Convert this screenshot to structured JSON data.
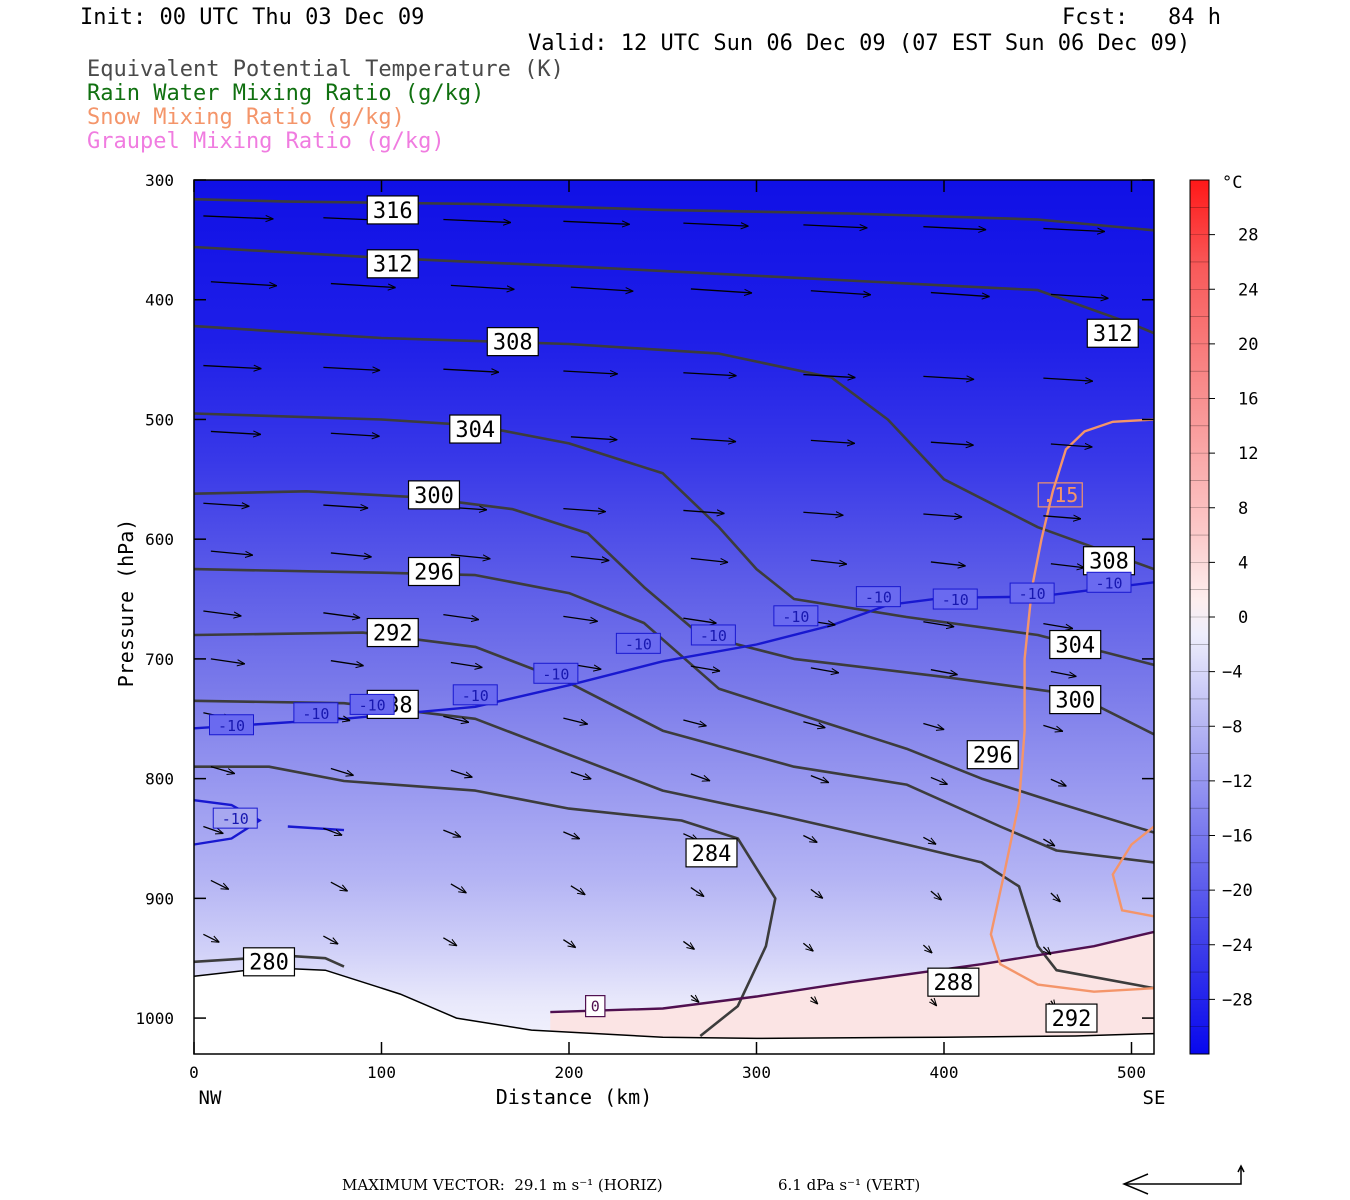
{
  "header": {
    "init": "Init: 00 UTC Thu 03 Dec 09",
    "fcst": "Fcst:   84 h",
    "valid": "Valid: 12 UTC Sun 06 Dec 09 (07 EST Sun 06 Dec 09)",
    "legend": [
      {
        "text": "Equivalent Potential Temperature (K)",
        "color": "#4a4a4a"
      },
      {
        "text": "Rain Water Mixing Ratio (g/kg)",
        "color": "#107010"
      },
      {
        "text": "Snow Mixing Ratio (g/kg)",
        "color": "#f4956a"
      },
      {
        "text": "Graupel Mixing Ratio (g/kg)",
        "color": "#f07ce0"
      }
    ]
  },
  "footer": {
    "max_vector": "MAXIMUM VECTOR:  29.1 m s⁻¹ (HORIZ)",
    "vert": "6.1 dPa s⁻¹ (VERT)"
  },
  "chart_data": {
    "type": "heatmap",
    "xlabel": "Distance (km)",
    "ylabel": "Pressure (hPa)",
    "xlim": [
      0,
      512
    ],
    "ylim": [
      1030,
      300
    ],
    "x_ticks": [
      0,
      100,
      200,
      300,
      400,
      500
    ],
    "y_ticks": [
      300,
      400,
      500,
      600,
      700,
      800,
      900,
      1000
    ],
    "x_end_labels": {
      "left": "NW",
      "right": "SE"
    },
    "colorbar": {
      "unit": "°C",
      "ticks": [
        28,
        24,
        20,
        16,
        12,
        8,
        4,
        0,
        -4,
        -8,
        -12,
        -16,
        -20,
        -24,
        -28
      ],
      "range": [
        -32,
        32
      ]
    },
    "theta_e_contours": [
      {
        "label": "316",
        "points": [
          [
            0,
            316
          ],
          [
            50,
            318
          ],
          [
            150,
            320
          ],
          [
            250,
            325
          ],
          [
            350,
            328
          ],
          [
            450,
            333
          ],
          [
            512,
            342
          ]
        ],
        "label_at": [
          106,
          325
        ]
      },
      {
        "label": "312",
        "points": [
          [
            0,
            356
          ],
          [
            100,
            365
          ],
          [
            200,
            372
          ],
          [
            300,
            380
          ],
          [
            400,
            388
          ],
          [
            450,
            392
          ],
          [
            500,
            420
          ],
          [
            512,
            428
          ]
        ],
        "label_at": [
          106,
          370
        ],
        "label2_at": [
          490,
          428
        ]
      },
      {
        "label": "308",
        "points": [
          [
            0,
            422
          ],
          [
            100,
            432
          ],
          [
            200,
            437
          ],
          [
            280,
            445
          ],
          [
            340,
            465
          ],
          [
            370,
            500
          ],
          [
            400,
            550
          ],
          [
            450,
            590
          ],
          [
            512,
            625
          ]
        ],
        "label_at": [
          170,
          435
        ],
        "label2_at": [
          488,
          618
        ]
      },
      {
        "label": "304",
        "points": [
          [
            0,
            495
          ],
          [
            100,
            500
          ],
          [
            150,
            505
          ],
          [
            200,
            520
          ],
          [
            250,
            545
          ],
          [
            280,
            590
          ],
          [
            300,
            625
          ],
          [
            320,
            650
          ],
          [
            380,
            665
          ],
          [
            450,
            680
          ],
          [
            512,
            705
          ]
        ],
        "label_at": [
          150,
          508
        ],
        "label2_at": [
          470,
          688
        ]
      },
      {
        "label": "300",
        "points": [
          [
            0,
            562
          ],
          [
            60,
            560
          ],
          [
            120,
            565
          ],
          [
            170,
            575
          ],
          [
            210,
            595
          ],
          [
            240,
            640
          ],
          [
            270,
            680
          ],
          [
            320,
            700
          ],
          [
            400,
            715
          ],
          [
            470,
            730
          ],
          [
            512,
            763
          ]
        ],
        "label_at": [
          128,
          563
        ],
        "label2_at": [
          470,
          734
        ]
      },
      {
        "label": "296",
        "points": [
          [
            0,
            625
          ],
          [
            100,
            628
          ],
          [
            150,
            630
          ],
          [
            200,
            645
          ],
          [
            240,
            670
          ],
          [
            280,
            725
          ],
          [
            340,
            755
          ],
          [
            380,
            775
          ],
          [
            420,
            800
          ],
          [
            460,
            820
          ],
          [
            512,
            845
          ]
        ],
        "label_at": [
          128,
          627
        ],
        "label2_at": [
          426,
          780
        ]
      },
      {
        "label": "292",
        "points": [
          [
            0,
            680
          ],
          [
            90,
            678
          ],
          [
            150,
            690
          ],
          [
            200,
            720
          ],
          [
            250,
            760
          ],
          [
            320,
            790
          ],
          [
            380,
            805
          ],
          [
            430,
            840
          ],
          [
            460,
            860
          ],
          [
            512,
            870
          ]
        ],
        "label_at": [
          106,
          678
        ],
        "label2_at": [
          468,
          1000
        ]
      },
      {
        "label": "288",
        "points": [
          [
            0,
            735
          ],
          [
            80,
            737
          ],
          [
            150,
            750
          ],
          [
            200,
            780
          ],
          [
            250,
            810
          ],
          [
            310,
            830
          ],
          [
            380,
            855
          ],
          [
            420,
            870
          ],
          [
            440,
            890
          ],
          [
            450,
            940
          ],
          [
            460,
            960
          ],
          [
            512,
            975
          ]
        ],
        "label_at": [
          106,
          738
        ],
        "label2_at": [
          405,
          970
        ]
      },
      {
        "label": "284",
        "points": [
          [
            0,
            790
          ],
          [
            40,
            790
          ],
          [
            80,
            802
          ],
          [
            150,
            810
          ],
          [
            200,
            825
          ],
          [
            260,
            835
          ],
          [
            290,
            850
          ],
          [
            300,
            875
          ],
          [
            310,
            900
          ],
          [
            305,
            940
          ],
          [
            290,
            990
          ],
          [
            270,
            1015
          ]
        ],
        "label_at": [
          276,
          862
        ]
      },
      {
        "label": "280",
        "points": [
          [
            0,
            953
          ],
          [
            50,
            948
          ],
          [
            70,
            950
          ],
          [
            80,
            957
          ]
        ],
        "label_at": [
          40,
          953
        ]
      }
    ],
    "temp_contour_minus10": {
      "label": "-10",
      "points": [
        [
          0,
          758
        ],
        [
          80,
          750
        ],
        [
          150,
          740
        ],
        [
          200,
          722
        ],
        [
          250,
          702
        ],
        [
          300,
          688
        ],
        [
          340,
          672
        ],
        [
          370,
          655
        ],
        [
          400,
          649
        ],
        [
          450,
          648
        ],
        [
          512,
          636
        ]
      ],
      "labels_at": [
        [
          20,
          755
        ],
        [
          65,
          745
        ],
        [
          95,
          738
        ],
        [
          150,
          730
        ],
        [
          193,
          712
        ],
        [
          237,
          687
        ],
        [
          277,
          680
        ],
        [
          321,
          664
        ],
        [
          365,
          648
        ],
        [
          406,
          650
        ],
        [
          447,
          645
        ],
        [
          488,
          636
        ]
      ]
    },
    "zero_isotherm": {
      "label": "0",
      "points": [
        [
          190,
          995
        ],
        [
          250,
          992
        ],
        [
          300,
          982
        ],
        [
          350,
          970
        ],
        [
          420,
          955
        ],
        [
          480,
          940
        ],
        [
          512,
          928
        ]
      ],
      "label_at": [
        214,
        990
      ]
    },
    "snow_contour": {
      "label": ".15",
      "points": [
        [
          512,
          500
        ],
        [
          490,
          502
        ],
        [
          475,
          510
        ],
        [
          465,
          525
        ],
        [
          458,
          560
        ],
        [
          452,
          600
        ],
        [
          447,
          640
        ],
        [
          443,
          700
        ],
        [
          443,
          760
        ],
        [
          440,
          820
        ],
        [
          432,
          880
        ],
        [
          425,
          930
        ],
        [
          430,
          955
        ],
        [
          450,
          972
        ],
        [
          480,
          978
        ],
        [
          512,
          975
        ]
      ],
      "label_at": [
        462,
        563
      ]
    },
    "snow_contour_b": [
      [
        512,
        840
      ],
      [
        500,
        855
      ],
      [
        490,
        880
      ],
      [
        495,
        910
      ],
      [
        512,
        915
      ]
    ],
    "max_vector_ms": 29.1,
    "max_vector_vert_dpa": 6.1
  }
}
